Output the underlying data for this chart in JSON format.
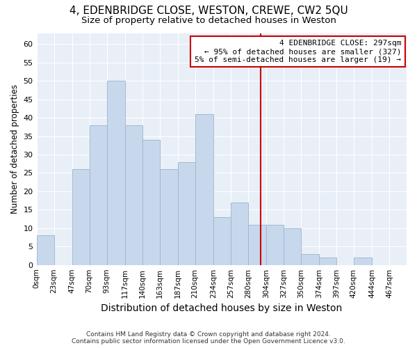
{
  "title": "4, EDENBRIDGE CLOSE, WESTON, CREWE, CW2 5QU",
  "subtitle": "Size of property relative to detached houses in Weston",
  "xlabel": "Distribution of detached houses by size in Weston",
  "ylabel": "Number of detached properties",
  "footer_line1": "Contains HM Land Registry data © Crown copyright and database right 2024.",
  "footer_line2": "Contains public sector information licensed under the Open Government Licence v3.0.",
  "bin_labels": [
    "0sqm",
    "23sqm",
    "47sqm",
    "70sqm",
    "93sqm",
    "117sqm",
    "140sqm",
    "163sqm",
    "187sqm",
    "210sqm",
    "234sqm",
    "257sqm",
    "280sqm",
    "304sqm",
    "327sqm",
    "350sqm",
    "374sqm",
    "397sqm",
    "420sqm",
    "444sqm",
    "467sqm"
  ],
  "bar_heights": [
    8,
    0,
    26,
    38,
    50,
    38,
    34,
    26,
    28,
    41,
    13,
    17,
    11,
    11,
    10,
    3,
    2,
    0,
    2,
    0,
    0
  ],
  "bin_edges": [
    0,
    23,
    47,
    70,
    93,
    117,
    140,
    163,
    187,
    210,
    234,
    257,
    280,
    304,
    327,
    350,
    374,
    397,
    420,
    444,
    467,
    490
  ],
  "bar_color": "#c8d8ec",
  "bar_edgecolor": "#9ab4cc",
  "vline_x": 297,
  "vline_color": "#cc0000",
  "annotation_line1": "4 EDENBRIDGE CLOSE: 297sqm",
  "annotation_line2": "← 95% of detached houses are smaller (327)",
  "annotation_line3": "5% of semi-detached houses are larger (19) →",
  "annotation_box_edgecolor": "#cc0000",
  "annotation_fontsize": 8,
  "ylim": [
    0,
    63
  ],
  "yticks": [
    0,
    5,
    10,
    15,
    20,
    25,
    30,
    35,
    40,
    45,
    50,
    55,
    60
  ],
  "bg_color": "#e8eff7",
  "plot_bg_color": "#e8eff7",
  "title_fontsize": 11,
  "subtitle_fontsize": 9.5,
  "xlabel_fontsize": 10,
  "ylabel_fontsize": 8.5,
  "tick_fontsize": 7.5,
  "footer_fontsize": 6.5
}
